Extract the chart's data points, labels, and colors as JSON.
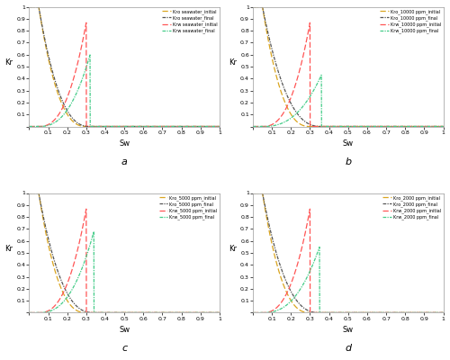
{
  "subplots": [
    {
      "label": "a",
      "kro_initial_label": "Kro seawater_initial",
      "kro_final_label": "Kro seawater_final",
      "krw_initial_label": "Krw seawater_initial",
      "krw_final_label": "Krw seawater_final",
      "swi": 0.05,
      "sor_initial": 0.7,
      "sor_final": 0.68,
      "no": 2.5,
      "nw": 2.5,
      "krw_max_initial": 0.87,
      "krw_max_final": 0.6
    },
    {
      "label": "b",
      "kro_initial_label": "Kro_10000 ppm_initial",
      "kro_final_label": "Kro_10000 ppm_final",
      "krw_initial_label": "Krw_10000 ppm_initial",
      "krw_final_label": "Krw_10000 ppm_final",
      "swi": 0.05,
      "sor_initial": 0.7,
      "sor_final": 0.64,
      "no": 2.5,
      "nw": 2.5,
      "krw_max_initial": 0.87,
      "krw_max_final": 0.43
    },
    {
      "label": "c",
      "kro_initial_label": "Kro_5000 ppm_initial",
      "kro_final_label": "Kro_5000 ppm_final",
      "krw_initial_label": "Krw_5000 ppm_initial",
      "krw_final_label": "Krw_5000 ppm_final",
      "swi": 0.05,
      "sor_initial": 0.7,
      "sor_final": 0.66,
      "no": 2.5,
      "nw": 2.5,
      "krw_max_initial": 0.87,
      "krw_max_final": 0.68
    },
    {
      "label": "d",
      "kro_initial_label": "Kro_2000 ppm_initial",
      "kro_final_label": "Kro_2000 ppm_final",
      "krw_initial_label": "Krw_2000 ppm_initial",
      "krw_final_label": "Krw_2000 ppm_final",
      "swi": 0.05,
      "sor_initial": 0.7,
      "sor_final": 0.65,
      "no": 2.5,
      "nw": 2.5,
      "krw_max_initial": 0.87,
      "krw_max_final": 0.55
    }
  ],
  "xlim": [
    0,
    1
  ],
  "ylim": [
    0,
    1
  ],
  "xticks": [
    0,
    0.1,
    0.2,
    0.3,
    0.4,
    0.5,
    0.6,
    0.7,
    0.8,
    0.9,
    1
  ],
  "yticks": [
    0,
    0.1,
    0.2,
    0.3,
    0.4,
    0.5,
    0.6,
    0.7,
    0.8,
    0.9,
    1
  ],
  "xlabel": "Sw",
  "ylabel": "Kr",
  "color_kro_initial": "#DAA520",
  "color_kro_final": "#555555",
  "color_krw_initial": "#FF5555",
  "color_krw_final": "#44CC88",
  "bg_color": "#ffffff"
}
